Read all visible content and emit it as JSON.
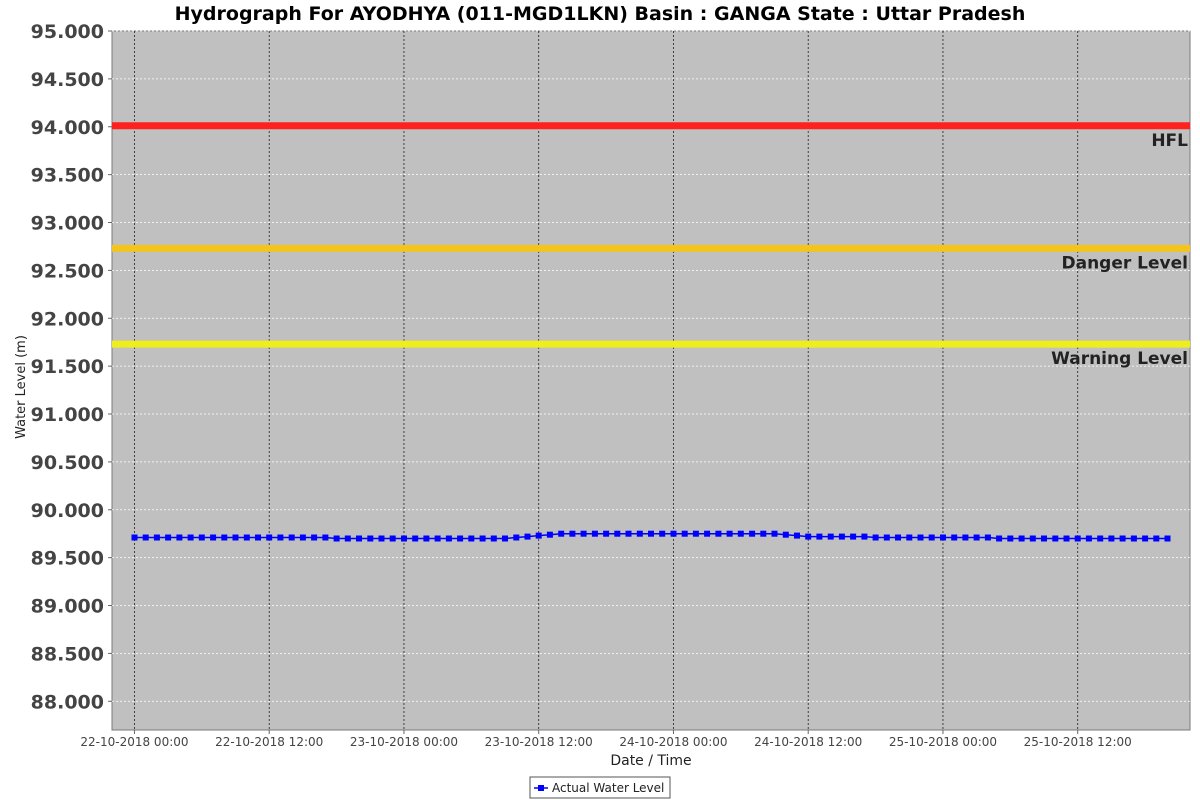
{
  "chart_data": {
    "type": "line",
    "title": "Hydrograph For AYODHYA (011-MGD1LKN) Basin : GANGA State : Uttar Pradesh",
    "xlabel": "Date / Time",
    "ylabel": "Water Level (m)",
    "ylim": [
      87.7,
      95.0
    ],
    "y_ticks": [
      "88.000",
      "88.500",
      "89.000",
      "89.500",
      "90.000",
      "90.500",
      "91.000",
      "91.500",
      "92.000",
      "92.500",
      "93.000",
      "93.500",
      "94.000",
      "94.500",
      "95.000"
    ],
    "x_range": [
      "2018-10-21T22:00",
      "2018-10-25T22:00"
    ],
    "x_ticks": [
      {
        "label": "22-10-2018 00:00",
        "value": "2018-10-22T00:00"
      },
      {
        "label": "22-10-2018 12:00",
        "value": "2018-10-22T12:00"
      },
      {
        "label": "23-10-2018 00:00",
        "value": "2018-10-23T00:00"
      },
      {
        "label": "23-10-2018 12:00",
        "value": "2018-10-23T12:00"
      },
      {
        "label": "24-10-2018 00:00",
        "value": "2018-10-24T00:00"
      },
      {
        "label": "24-10-2018 12:00",
        "value": "2018-10-24T12:00"
      },
      {
        "label": "25-10-2018 00:00",
        "value": "2018-10-25T00:00"
      },
      {
        "label": "25-10-2018 12:00",
        "value": "2018-10-25T12:00"
      }
    ],
    "grid": true,
    "background": "#c0c0c0",
    "reference_lines": [
      {
        "label": "HFL",
        "value": 94.01,
        "color": "#ff2020"
      },
      {
        "label": "Danger Level",
        "value": 92.73,
        "color": "#f2c41c"
      },
      {
        "label": "Warning Level",
        "value": 91.73,
        "color": "#eeee1e"
      }
    ],
    "series": [
      {
        "name": "Actual Water Level",
        "color": "#0000ff",
        "start": "2018-10-22T00:00",
        "interval_hours": 1,
        "values": [
          89.71,
          89.71,
          89.71,
          89.71,
          89.71,
          89.71,
          89.71,
          89.71,
          89.71,
          89.71,
          89.71,
          89.71,
          89.71,
          89.71,
          89.71,
          89.71,
          89.71,
          89.71,
          89.7,
          89.7,
          89.7,
          89.7,
          89.7,
          89.7,
          89.7,
          89.7,
          89.7,
          89.7,
          89.7,
          89.7,
          89.7,
          89.7,
          89.7,
          89.7,
          89.71,
          89.72,
          89.73,
          89.74,
          89.75,
          89.75,
          89.75,
          89.75,
          89.75,
          89.75,
          89.75,
          89.75,
          89.75,
          89.75,
          89.75,
          89.75,
          89.75,
          89.75,
          89.75,
          89.75,
          89.75,
          89.75,
          89.75,
          89.75,
          89.74,
          89.73,
          89.72,
          89.72,
          89.72,
          89.72,
          89.72,
          89.72,
          89.71,
          89.71,
          89.71,
          89.71,
          89.71,
          89.71,
          89.71,
          89.71,
          89.71,
          89.71,
          89.71,
          89.7,
          89.7,
          89.7,
          89.7,
          89.7,
          89.7,
          89.7,
          89.7,
          89.7,
          89.7,
          89.7,
          89.7,
          89.7,
          89.7,
          89.7,
          89.7
        ]
      }
    ],
    "legend": "bottom-center"
  }
}
